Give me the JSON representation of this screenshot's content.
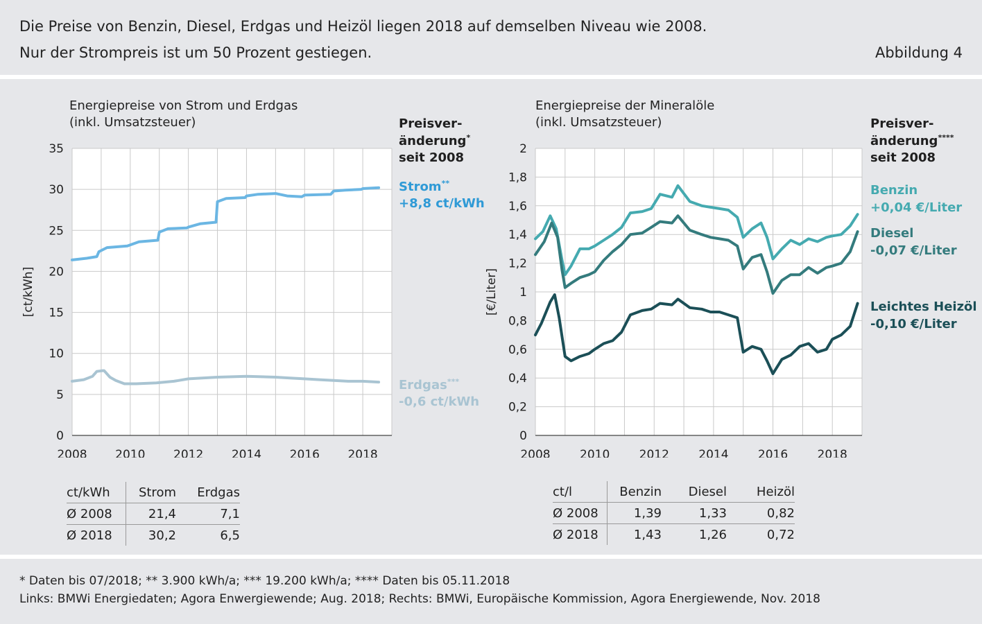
{
  "header": {
    "line1": "Die Preise von Benzin, Diesel, Erdgas und Heizöl liegen 2018 auf demselben Niveau wie 2008.",
    "line2": "Nur der Strompreis ist um 50 Prozent gestiegen.",
    "figure_label": "Abbildung 4"
  },
  "left_panel": {
    "title1": "Energiepreise von Strom und Erdgas",
    "title2": "(inkl. Umsatzsteuer)",
    "change_head1": "Preisver-",
    "change_head2": "änderung",
    "change_head2_sup": "*",
    "change_head3": "seit 2008",
    "strom_name": "Strom",
    "strom_sup": "**",
    "strom_change": "+8,8 ct/kWh",
    "erdgas_name": "Erdgas",
    "erdgas_sup": "***",
    "erdgas_change": "-0,6 ct/kWh",
    "colors": {
      "strom": "#6bb6e3",
      "erdgas": "#a9c4d2"
    },
    "table": {
      "header": [
        "ct/kWh",
        "Strom",
        "Erdgas"
      ],
      "rows": [
        [
          "Ø 2008",
          "21,4",
          "7,1"
        ],
        [
          "Ø 2018",
          "30,2",
          "6,5"
        ]
      ]
    }
  },
  "right_panel": {
    "title1": "Energiepreise der Mineralöle",
    "title2": "(inkl. Umsatzsteuer)",
    "change_head1": "Preisver-",
    "change_head2": "änderung",
    "change_head2_sup": "****",
    "change_head3": "seit 2008",
    "benzin_name": "Benzin",
    "benzin_change": "+0,04 €/Liter",
    "diesel_name": "Diesel",
    "diesel_change": "-0,07 €/Liter",
    "heizoel_name": "Leichtes Heizöl",
    "heizoel_change": "-0,10 €/Liter",
    "colors": {
      "benzin": "#45aab0",
      "diesel": "#347b7d",
      "heizoel": "#1b4f57"
    },
    "table": {
      "header": [
        "ct/l",
        "Benzin",
        "Diesel",
        "Heizöl"
      ],
      "rows": [
        [
          "Ø 2008",
          "1,39",
          "1,33",
          "0,82"
        ],
        [
          "Ø 2018",
          "1,43",
          "1,26",
          "0,72"
        ]
      ]
    }
  },
  "footer": {
    "line1": "* Daten bis 07/2018; ** 3.900 kWh/a; *** 19.200 kWh/a; **** Daten bis 05.11.2018",
    "line2": "Links: BMWi Energiedaten; Agora Enwergiewende; Aug. 2018; Rechts: BMWi, Europäische Kommission, Agora Energiewende, Nov. 2018"
  },
  "chart_data": [
    {
      "type": "line",
      "title": "Energiepreise von Strom und Erdgas",
      "ylabel": "[ct/kWh]",
      "xlim": [
        2008,
        2019
      ],
      "ylim": [
        0,
        35
      ],
      "x_ticks": [
        "2008",
        "2010",
        "2012",
        "2014",
        "2016",
        "2018"
      ],
      "y_ticks": [
        "0",
        "5",
        "10",
        "15",
        "20",
        "25",
        "30",
        "35"
      ],
      "grid": true,
      "series": [
        {
          "name": "Strom",
          "x": [
            2008.0,
            2008.5,
            2008.85,
            2008.92,
            2009.2,
            2009.9,
            2010.3,
            2010.95,
            2011.0,
            2011.3,
            2011.95,
            2012.0,
            2012.4,
            2012.95,
            2013.0,
            2013.3,
            2013.95,
            2014.0,
            2014.4,
            2015.0,
            2015.4,
            2015.9,
            2016.0,
            2016.9,
            2017.0,
            2017.4,
            2017.95,
            2018.0,
            2018.55
          ],
          "values": [
            21.4,
            21.6,
            21.8,
            22.4,
            22.9,
            23.1,
            23.6,
            23.8,
            24.8,
            25.2,
            25.3,
            25.4,
            25.8,
            26.0,
            28.5,
            28.9,
            29.0,
            29.2,
            29.4,
            29.5,
            29.2,
            29.1,
            29.3,
            29.4,
            29.8,
            29.9,
            30.0,
            30.1,
            30.2
          ]
        },
        {
          "name": "Erdgas",
          "x": [
            2008.0,
            2008.4,
            2008.7,
            2008.85,
            2009.05,
            2009.1,
            2009.3,
            2009.5,
            2009.8,
            2010.2,
            2010.9,
            2011.5,
            2012.0,
            2013.0,
            2014.0,
            2015.0,
            2015.5,
            2016.0,
            2016.5,
            2017.0,
            2017.5,
            2018.0,
            2018.55
          ],
          "values": [
            6.6,
            6.8,
            7.2,
            7.8,
            7.9,
            7.9,
            7.1,
            6.7,
            6.3,
            6.3,
            6.4,
            6.6,
            6.9,
            7.1,
            7.2,
            7.1,
            7.0,
            6.9,
            6.8,
            6.7,
            6.6,
            6.6,
            6.5
          ]
        }
      ]
    },
    {
      "type": "line",
      "title": "Energiepreise der Mineralöle",
      "ylabel": "[€/Liter]",
      "xlim": [
        2008,
        2019
      ],
      "ylim": [
        0,
        2
      ],
      "x_ticks": [
        "2008",
        "2010",
        "2012",
        "2014",
        "2016",
        "2018"
      ],
      "y_ticks": [
        "0",
        "0,2",
        "0,4",
        "0,6",
        "0,8",
        "1",
        "1,2",
        "1,4",
        "1,6",
        "1,8",
        "2"
      ],
      "grid": true,
      "series": [
        {
          "name": "Benzin",
          "x": [
            2008.0,
            2008.25,
            2008.5,
            2008.7,
            2008.9,
            2009.0,
            2009.2,
            2009.5,
            2009.8,
            2010.0,
            2010.3,
            2010.6,
            2010.9,
            2011.2,
            2011.6,
            2011.9,
            2012.2,
            2012.6,
            2012.8,
            2013.2,
            2013.6,
            2013.9,
            2014.2,
            2014.5,
            2014.8,
            2015.0,
            2015.3,
            2015.6,
            2015.8,
            2016.0,
            2016.3,
            2016.6,
            2016.9,
            2017.2,
            2017.5,
            2017.8,
            2018.0,
            2018.3,
            2018.6,
            2018.85
          ],
          "values": [
            1.37,
            1.42,
            1.53,
            1.44,
            1.22,
            1.12,
            1.18,
            1.3,
            1.3,
            1.32,
            1.36,
            1.4,
            1.45,
            1.55,
            1.56,
            1.58,
            1.68,
            1.66,
            1.74,
            1.63,
            1.6,
            1.59,
            1.58,
            1.57,
            1.52,
            1.38,
            1.44,
            1.48,
            1.38,
            1.23,
            1.3,
            1.36,
            1.33,
            1.37,
            1.35,
            1.38,
            1.39,
            1.4,
            1.46,
            1.54
          ]
        },
        {
          "name": "Diesel",
          "x": [
            2008.0,
            2008.3,
            2008.55,
            2008.75,
            2008.9,
            2009.0,
            2009.2,
            2009.5,
            2009.8,
            2010.0,
            2010.3,
            2010.6,
            2010.9,
            2011.2,
            2011.6,
            2011.9,
            2012.2,
            2012.6,
            2012.8,
            2013.2,
            2013.6,
            2013.9,
            2014.2,
            2014.5,
            2014.8,
            2015.0,
            2015.3,
            2015.6,
            2015.8,
            2016.0,
            2016.3,
            2016.6,
            2016.9,
            2017.2,
            2017.5,
            2017.8,
            2018.0,
            2018.3,
            2018.6,
            2018.85
          ],
          "values": [
            1.26,
            1.35,
            1.48,
            1.38,
            1.15,
            1.03,
            1.06,
            1.1,
            1.12,
            1.14,
            1.22,
            1.28,
            1.33,
            1.4,
            1.41,
            1.45,
            1.49,
            1.48,
            1.53,
            1.43,
            1.4,
            1.38,
            1.37,
            1.36,
            1.32,
            1.16,
            1.24,
            1.26,
            1.14,
            0.99,
            1.08,
            1.12,
            1.12,
            1.17,
            1.13,
            1.17,
            1.18,
            1.2,
            1.28,
            1.42
          ]
        },
        {
          "name": "Leichtes Heizöl",
          "x": [
            2008.0,
            2008.2,
            2008.5,
            2008.65,
            2008.8,
            2009.0,
            2009.2,
            2009.5,
            2009.8,
            2010.0,
            2010.3,
            2010.6,
            2010.9,
            2011.2,
            2011.6,
            2011.9,
            2012.2,
            2012.6,
            2012.8,
            2013.2,
            2013.6,
            2013.9,
            2014.2,
            2014.5,
            2014.8,
            2015.0,
            2015.3,
            2015.6,
            2015.8,
            2016.0,
            2016.3,
            2016.6,
            2016.9,
            2017.2,
            2017.5,
            2017.8,
            2018.0,
            2018.3,
            2018.6,
            2018.85
          ],
          "values": [
            0.7,
            0.78,
            0.93,
            0.98,
            0.82,
            0.55,
            0.52,
            0.55,
            0.57,
            0.6,
            0.64,
            0.66,
            0.72,
            0.84,
            0.87,
            0.88,
            0.92,
            0.91,
            0.95,
            0.89,
            0.88,
            0.86,
            0.86,
            0.84,
            0.82,
            0.58,
            0.62,
            0.6,
            0.52,
            0.43,
            0.53,
            0.56,
            0.62,
            0.64,
            0.58,
            0.6,
            0.67,
            0.7,
            0.76,
            0.92
          ]
        }
      ]
    }
  ]
}
